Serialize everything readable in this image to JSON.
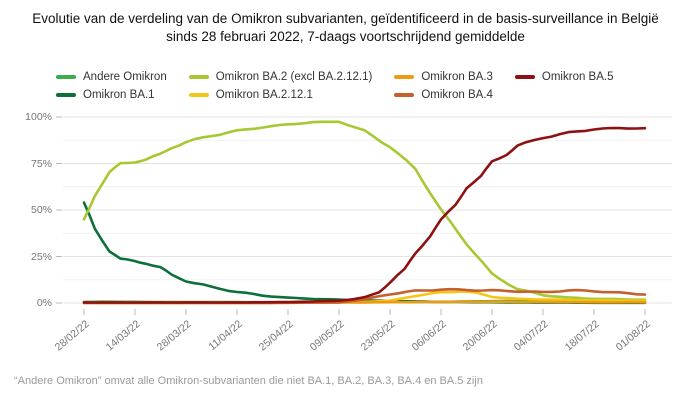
{
  "title": {
    "line1": "Evolutie van de verdeling van de Omikron subvarianten, geïdentificeerd in de basis-surveillance in België",
    "line2": "sinds 28 februari 2022, 7-daags voortschrijdend gemiddelde"
  },
  "footer": "“Andere Omikron” omvat alle Omikron-subvarianten die niet BA.1, BA.2, BA.3, BA.4 en BA.5 zijn",
  "colors": {
    "andere_omikron": "#3aae49",
    "omikron_ba1": "#0e6f3a",
    "omikron_ba2": "#a6c832",
    "omikron_ba2121": "#f5c518",
    "omikron_ba3": "#ef9b0f",
    "omikron_ba4": "#c65f2e",
    "omikron_ba5": "#8e1111",
    "grid_major": "#e3e3e3",
    "grid_minor": "#f1f1f1",
    "tick": "#bbbbbb"
  },
  "chart_data": {
    "type": "line",
    "title": "Evolutie van de verdeling van de Omikron subvarianten, geïdentificeerd in de basis-surveillance in België sinds 28 februari 2022, 7-daags voortschrijdend gemiddelde",
    "xlabel": "",
    "ylabel": "",
    "grid": true,
    "legend_position": "top",
    "x_axis": {
      "tick_labels": [
        "28/02/22",
        "14/03/22",
        "28/03/22",
        "11/04/22",
        "25/04/22",
        "09/05/22",
        "23/05/22",
        "06/06/22",
        "20/06/22",
        "04/07/22",
        "18/07/22",
        "01/08/22"
      ],
      "tick_day_offsets": [
        0,
        14,
        28,
        42,
        56,
        70,
        84,
        98,
        112,
        126,
        140,
        154
      ],
      "unit": "date (dd/mm/yy)"
    },
    "y_axis": {
      "tick_labels": [
        "0%",
        "25%",
        "50%",
        "75%",
        "100%"
      ],
      "tick_values": [
        0,
        25,
        50,
        75,
        100
      ],
      "minor_tick_values": [
        12.5,
        37.5,
        62.5,
        87.5
      ],
      "range": [
        0,
        100
      ],
      "unit": "percent"
    },
    "series": [
      {
        "name": "Andere Omikron",
        "color": "#3aae49",
        "days": [
          0,
          7,
          14,
          21,
          28,
          35,
          42,
          49,
          56,
          63,
          70,
          77,
          84,
          91,
          98,
          105,
          112,
          119,
          126,
          133,
          140,
          147,
          154
        ],
        "values": [
          0.6,
          0.7,
          0.6,
          0.5,
          0.5,
          0.5,
          0.5,
          0.4,
          0.4,
          0.4,
          0.4,
          0.4,
          0.5,
          0.5,
          0.6,
          0.8,
          1.0,
          1.0,
          1.0,
          0.9,
          0.9,
          0.8,
          0.8
        ]
      },
      {
        "name": "Omikron BA.1",
        "color": "#0e6f3a",
        "days": [
          0,
          3,
          7,
          10,
          14,
          17,
          21,
          24,
          28,
          35,
          42,
          49,
          56,
          63,
          70,
          77,
          84,
          91,
          98,
          105,
          112,
          119,
          126,
          133,
          140,
          147,
          154
        ],
        "values": [
          54,
          40,
          28,
          23.5,
          22.5,
          21.5,
          19,
          15,
          12,
          8.5,
          6,
          4,
          2.8,
          2.2,
          1.8,
          1.4,
          1.1,
          0.8,
          0.6,
          0.5,
          0.4,
          0.3,
          0.2,
          0.2,
          0.1,
          0.1,
          0.1
        ]
      },
      {
        "name": "Omikron BA.2 (excl BA.2.12.1)",
        "color": "#a6c832",
        "days": [
          0,
          3,
          7,
          10,
          14,
          17,
          21,
          24,
          28,
          35,
          42,
          49,
          56,
          63,
          70,
          77,
          84,
          91,
          98,
          105,
          112,
          119,
          126,
          133,
          140,
          147,
          154
        ],
        "values": [
          45,
          58,
          70,
          75,
          76,
          77,
          80,
          83.5,
          86.5,
          90,
          92.5,
          94.5,
          96,
          97.2,
          97.5,
          92.5,
          84,
          72,
          50,
          32,
          15.5,
          7.5,
          4.2,
          2.9,
          2.3,
          2.0,
          1.8
        ]
      },
      {
        "name": "Omikron BA.2.12.1",
        "color": "#f5c518",
        "days": [
          0,
          14,
          28,
          42,
          56,
          63,
          70,
          77,
          84,
          91,
          98,
          104,
          108,
          112,
          119,
          126,
          133,
          140,
          147,
          154
        ],
        "values": [
          0,
          0,
          0,
          0,
          0.1,
          0.2,
          0.3,
          0.6,
          1.2,
          3.9,
          5.7,
          6.4,
          5.3,
          3.3,
          2.2,
          1.9,
          1.6,
          1.4,
          1.3,
          1.2
        ]
      },
      {
        "name": "Omikron BA.3",
        "color": "#ef9b0f",
        "days": [
          0,
          14,
          28,
          42,
          56,
          70,
          84,
          91,
          98,
          105,
          112,
          119,
          126,
          133,
          140,
          147,
          154
        ],
        "values": [
          0.2,
          0.2,
          0.2,
          0.2,
          0.2,
          0.3,
          0.4,
          0.5,
          0.6,
          0.7,
          0.7,
          0.6,
          0.5,
          0.5,
          0.4,
          0.4,
          0.4
        ]
      },
      {
        "name": "Omikron BA.4",
        "color": "#c65f2e",
        "days": [
          0,
          14,
          28,
          42,
          56,
          63,
          70,
          77,
          84,
          91,
          98,
          105,
          112,
          119,
          126,
          133,
          140,
          147,
          154
        ],
        "values": [
          0,
          0,
          0,
          0,
          0.1,
          0.2,
          0.3,
          2.0,
          4.8,
          6.5,
          7.3,
          7.0,
          6.7,
          6.3,
          5.8,
          6.8,
          6.4,
          5.5,
          4.5
        ]
      },
      {
        "name": "Omikron BA.5",
        "color": "#8e1111",
        "days": [
          0,
          14,
          28,
          42,
          56,
          63,
          70,
          74,
          77,
          81,
          84,
          88,
          91,
          95,
          98,
          102,
          105,
          109,
          112,
          116,
          119,
          126,
          133,
          140,
          147,
          154
        ],
        "values": [
          0.3,
          0.3,
          0.3,
          0.3,
          0.5,
          0.8,
          1.3,
          2.0,
          3.0,
          6.0,
          11,
          18,
          27,
          36,
          44.5,
          53,
          62,
          68,
          76,
          80,
          84.5,
          89,
          91.5,
          93.5,
          94,
          94
        ]
      }
    ]
  }
}
